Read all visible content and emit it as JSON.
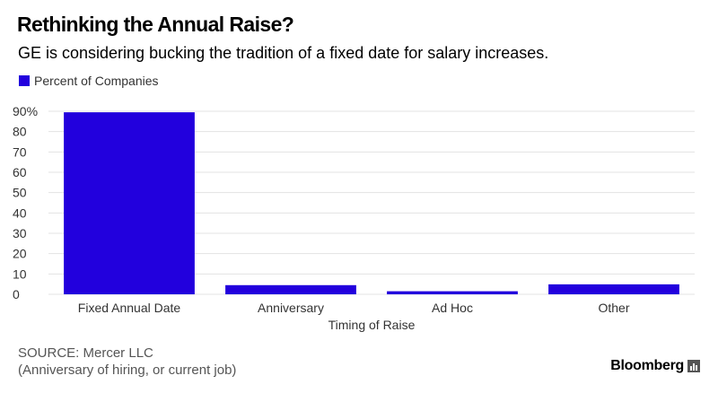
{
  "header": {
    "title": "Rethinking the Annual Raise?",
    "subtitle": "GE is considering bucking the tradition of a fixed date for salary increases."
  },
  "footer": {
    "source": "SOURCE: Mercer LLC",
    "note": "(Anniversary of hiring, or current job)",
    "brand": "Bloomberg",
    "brand_icon": "chart-bars-icon"
  },
  "colors": {
    "bar": "#2200dd",
    "grid": "#e3e3e3",
    "axis_text": "#333333"
  },
  "chart_data": {
    "type": "bar",
    "title": "Rethinking the Annual Raise?",
    "subtitle": "GE is considering bucking the tradition of a fixed date for salary increases.",
    "categories": [
      "Fixed Annual Date",
      "Anniversary",
      "Ad Hoc",
      "Other"
    ],
    "series": [
      {
        "name": "Percent of Companies",
        "values": [
          89.5,
          4.5,
          1.5,
          4.9
        ]
      }
    ],
    "xlabel": "Timing of Raise",
    "ylabel": "",
    "ylim": [
      0,
      90
    ],
    "yticks": [
      0,
      10,
      20,
      30,
      40,
      50,
      60,
      70,
      80,
      90
    ],
    "ytick_labels": [
      "0",
      "10",
      "20",
      "30",
      "40",
      "50",
      "60",
      "70",
      "80",
      "90%"
    ],
    "grid": true,
    "legend": "top-left"
  }
}
